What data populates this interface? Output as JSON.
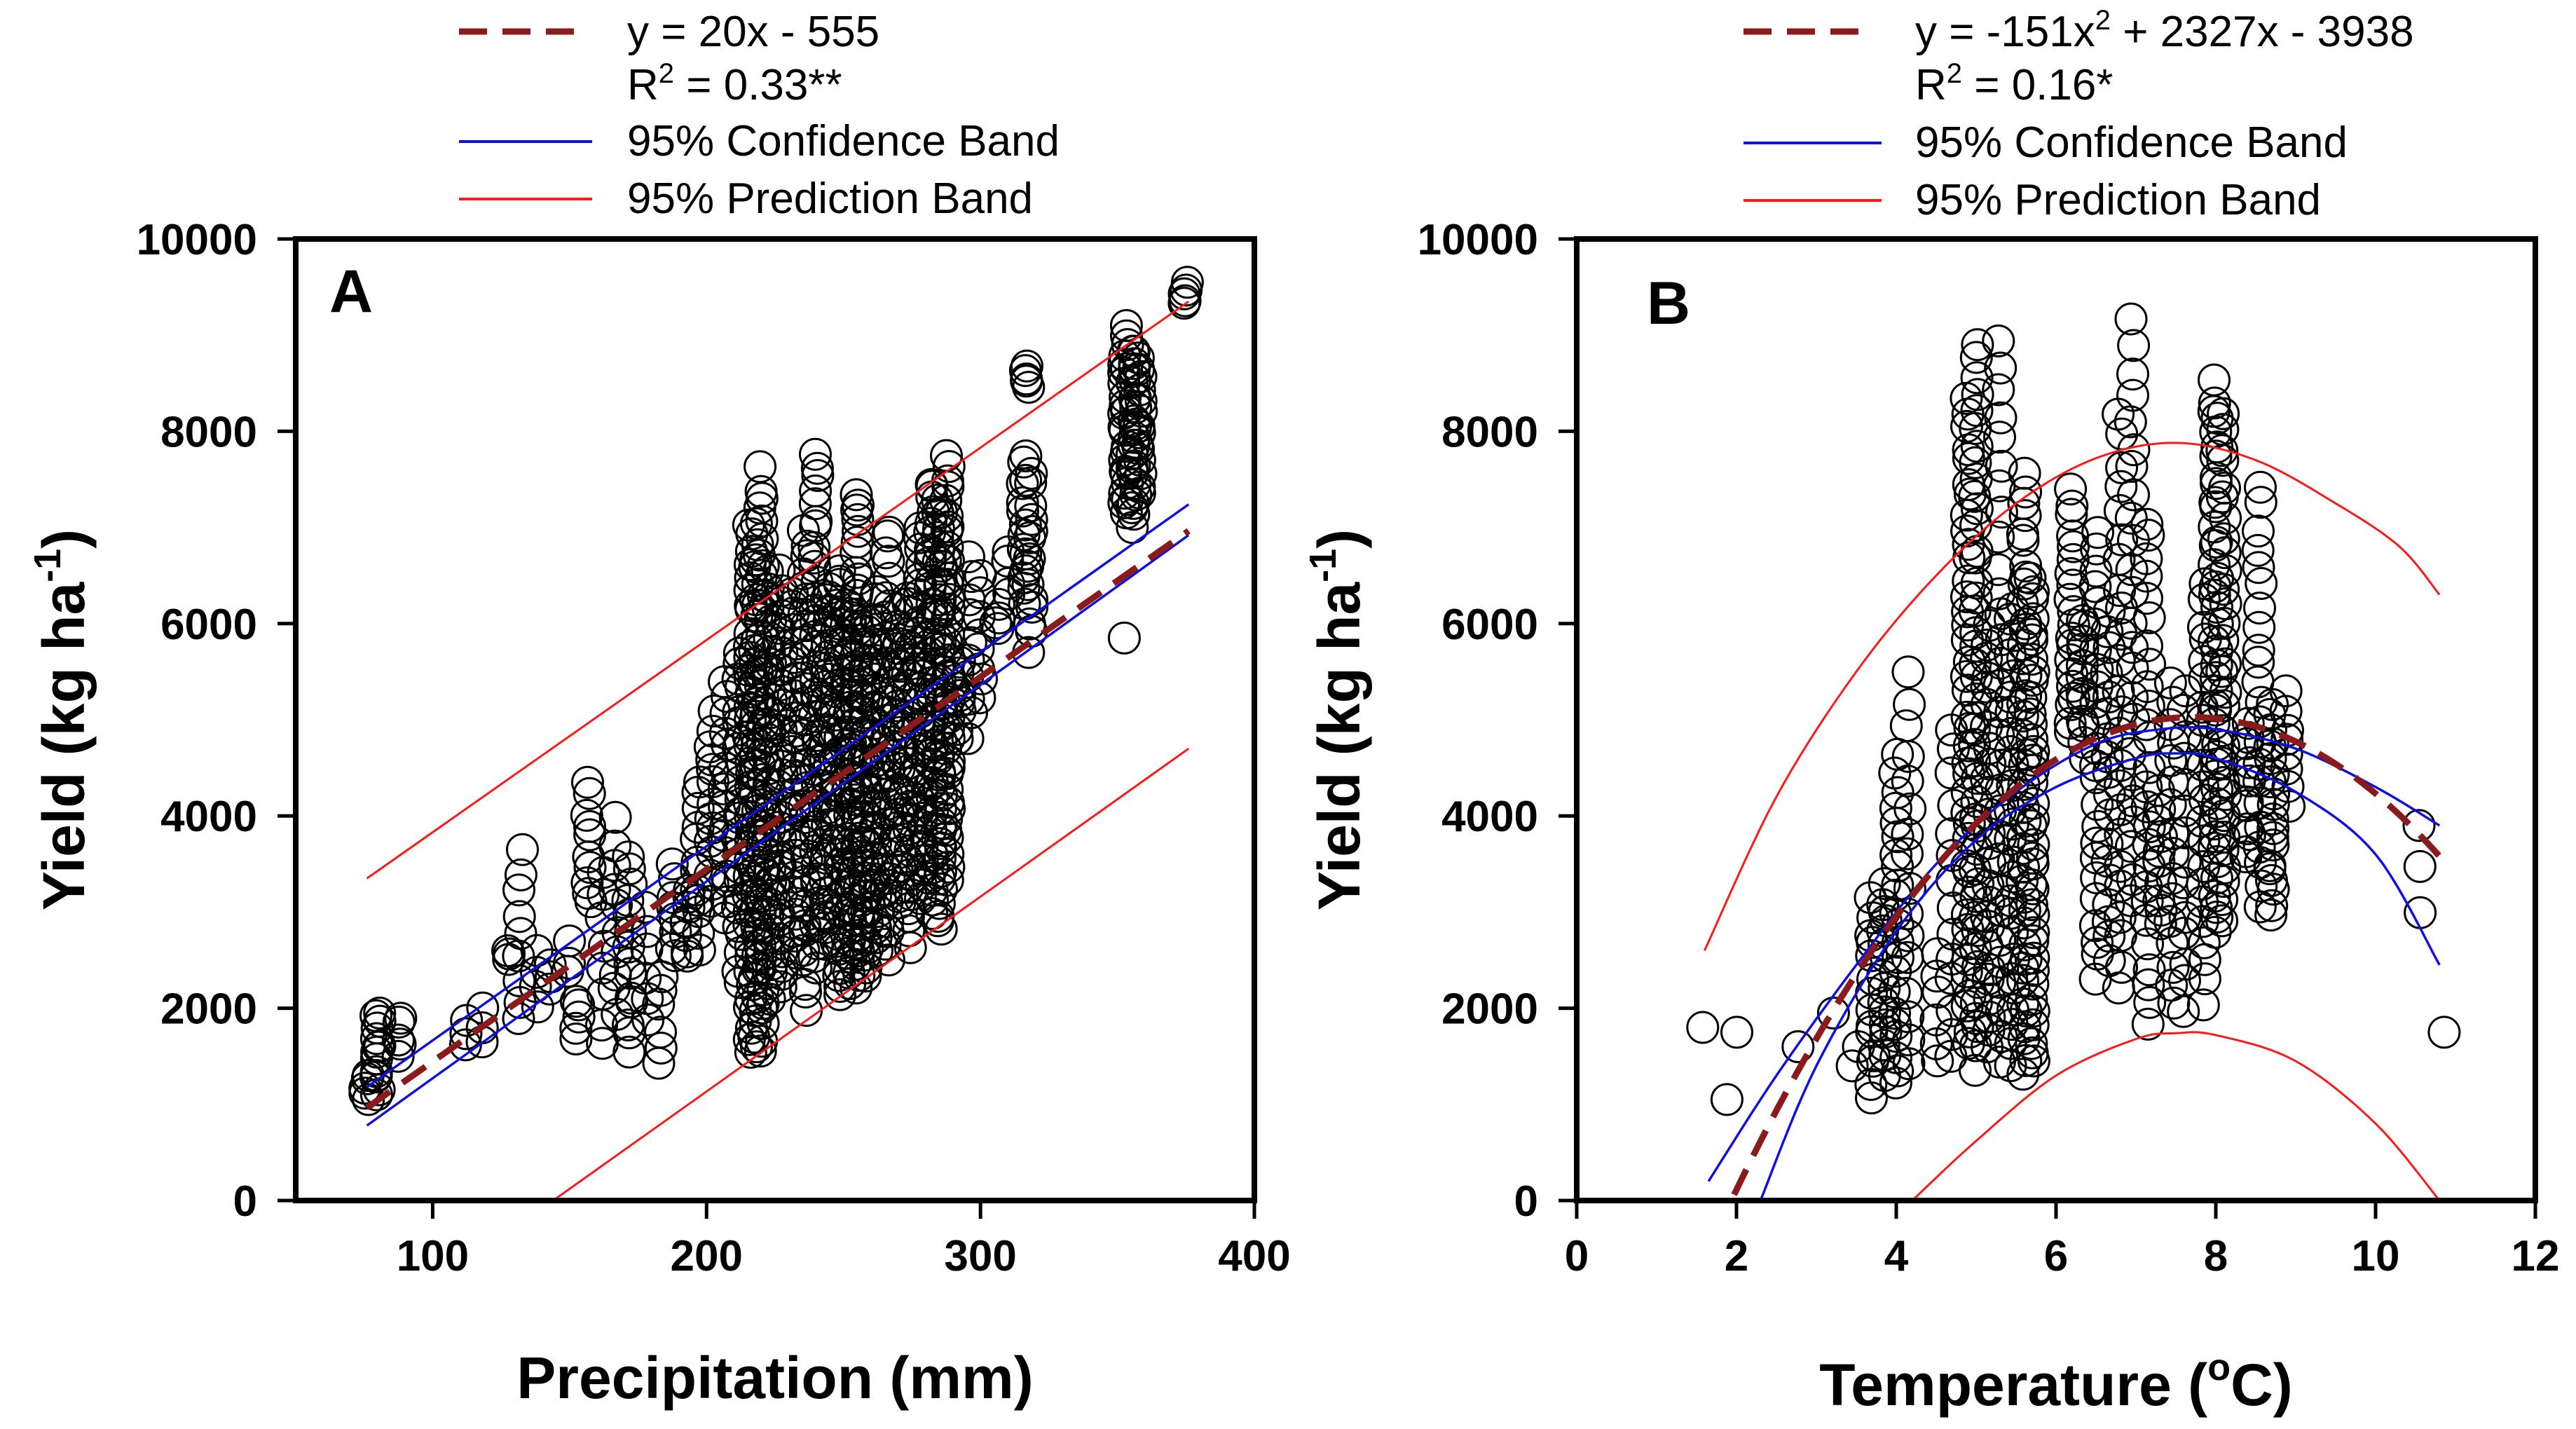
{
  "colors": {
    "fit": "#8b1a1a",
    "confidence": "#1010e0",
    "prediction": "#ff1a1a",
    "points": "#000000"
  },
  "chart_data": [
    {
      "type": "scatter",
      "panel_label": "A",
      "xlabel": "Precipitation (mm)",
      "ylabel_main": "Yield (kg ha",
      "ylabel_sup": "-1",
      "ylabel_close": ")",
      "xlim": [
        50,
        400
      ],
      "ylim": [
        0,
        10000
      ],
      "xticks": [
        100,
        200,
        300,
        400
      ],
      "yticks": [
        0,
        2000,
        4000,
        6000,
        8000,
        10000
      ],
      "legend": {
        "fit_line1": "y = 20x - 555",
        "fit_line2_prefix": "R",
        "fit_line2_sup": "2",
        "fit_line2_suffix": " = 0.33**",
        "confidence": "95% Confidence Band",
        "prediction": "95% Prediction Band"
      },
      "fit": {
        "model": "linear",
        "coefficients": [
          20,
          -555
        ],
        "x_range": [
          76,
          376
        ]
      },
      "confidence_band": {
        "lower": [
          [
            76,
            780
          ],
          [
            376,
            6920
          ]
        ],
        "upper": [
          [
            76,
            1180
          ],
          [
            376,
            7240
          ]
        ]
      },
      "prediction_band": {
        "lower": [
          [
            144,
            0
          ],
          [
            376,
            4700
          ]
        ],
        "upper": [
          [
            76,
            3350
          ],
          [
            376,
            9350
          ]
        ]
      },
      "clusters": [
        {
          "x": 76,
          "y_min": 1050,
          "y_max": 1300,
          "n": 5
        },
        {
          "x": 80,
          "y_min": 1100,
          "y_max": 1950,
          "n": 14
        },
        {
          "x": 88,
          "y_min": 1500,
          "y_max": 1900,
          "n": 5
        },
        {
          "x": 112,
          "y_min": 1600,
          "y_max": 1900,
          "n": 3
        },
        {
          "x": 118,
          "y_min": 1650,
          "y_max": 2050,
          "n": 3
        },
        {
          "x": 128,
          "y_min": 2450,
          "y_max": 2650,
          "n": 3
        },
        {
          "x": 132,
          "y_min": 1850,
          "y_max": 3650,
          "n": 9
        },
        {
          "x": 138,
          "y_min": 2000,
          "y_max": 2600,
          "n": 4
        },
        {
          "x": 143,
          "y_min": 2200,
          "y_max": 2500,
          "n": 3
        },
        {
          "x": 150,
          "y_min": 2350,
          "y_max": 2700,
          "n": 3
        },
        {
          "x": 153,
          "y_min": 1650,
          "y_max": 2100,
          "n": 5
        },
        {
          "x": 157,
          "y_min": 3050,
          "y_max": 4350,
          "n": 10
        },
        {
          "x": 162,
          "y_min": 1550,
          "y_max": 3450,
          "n": 8
        },
        {
          "x": 167,
          "y_min": 1900,
          "y_max": 4000,
          "n": 10
        },
        {
          "x": 172,
          "y_min": 1500,
          "y_max": 3600,
          "n": 14
        },
        {
          "x": 178,
          "y_min": 1850,
          "y_max": 3050,
          "n": 6
        },
        {
          "x": 183,
          "y_min": 1400,
          "y_max": 2400,
          "n": 6
        },
        {
          "x": 188,
          "y_min": 2500,
          "y_max": 3500,
          "n": 8
        },
        {
          "x": 193,
          "y_min": 2500,
          "y_max": 3300,
          "n": 8
        },
        {
          "x": 197,
          "y_min": 2600,
          "y_max": 4400,
          "n": 12
        },
        {
          "x": 202,
          "y_min": 3100,
          "y_max": 5100,
          "n": 14
        },
        {
          "x": 207,
          "y_min": 2900,
          "y_max": 5400,
          "n": 16
        },
        {
          "x": 212,
          "y_min": 2200,
          "y_max": 5800,
          "n": 24
        },
        {
          "x": 216,
          "y_min": 1450,
          "y_max": 7200,
          "n": 40
        },
        {
          "x": 218,
          "y_min": 1500,
          "y_max": 7100,
          "n": 40
        },
        {
          "x": 220,
          "y_min": 1400,
          "y_max": 7700,
          "n": 44
        },
        {
          "x": 223,
          "y_min": 2000,
          "y_max": 6600,
          "n": 36
        },
        {
          "x": 227,
          "y_min": 2100,
          "y_max": 6600,
          "n": 32
        },
        {
          "x": 232,
          "y_min": 2500,
          "y_max": 6400,
          "n": 30
        },
        {
          "x": 236,
          "y_min": 1900,
          "y_max": 7100,
          "n": 34
        },
        {
          "x": 240,
          "y_min": 2300,
          "y_max": 7900,
          "n": 40
        },
        {
          "x": 244,
          "y_min": 2600,
          "y_max": 6500,
          "n": 36
        },
        {
          "x": 248,
          "y_min": 2000,
          "y_max": 6700,
          "n": 38
        },
        {
          "x": 252,
          "y_min": 2200,
          "y_max": 6300,
          "n": 40
        },
        {
          "x": 255,
          "y_min": 2100,
          "y_max": 7500,
          "n": 46
        },
        {
          "x": 258,
          "y_min": 2300,
          "y_max": 6100,
          "n": 40
        },
        {
          "x": 262,
          "y_min": 2500,
          "y_max": 6400,
          "n": 34
        },
        {
          "x": 266,
          "y_min": 2400,
          "y_max": 7100,
          "n": 34
        },
        {
          "x": 270,
          "y_min": 3000,
          "y_max": 6200,
          "n": 30
        },
        {
          "x": 274,
          "y_min": 2600,
          "y_max": 6400,
          "n": 30
        },
        {
          "x": 278,
          "y_min": 3100,
          "y_max": 7100,
          "n": 32
        },
        {
          "x": 282,
          "y_min": 2900,
          "y_max": 7600,
          "n": 40
        },
        {
          "x": 285,
          "y_min": 2700,
          "y_max": 7400,
          "n": 44
        },
        {
          "x": 288,
          "y_min": 3300,
          "y_max": 7800,
          "n": 40
        },
        {
          "x": 292,
          "y_min": 4800,
          "y_max": 5600,
          "n": 8
        },
        {
          "x": 296,
          "y_min": 4800,
          "y_max": 6700,
          "n": 10
        },
        {
          "x": 300,
          "y_min": 5200,
          "y_max": 6500,
          "n": 8
        },
        {
          "x": 306,
          "y_min": 5900,
          "y_max": 6200,
          "n": 4
        },
        {
          "x": 310,
          "y_min": 6300,
          "y_max": 6800,
          "n": 4
        },
        {
          "x": 316,
          "y_min": 6200,
          "y_max": 7800,
          "n": 14
        },
        {
          "x": 318,
          "y_min": 5700,
          "y_max": 7600,
          "n": 14
        },
        {
          "x": 317,
          "y_min": 8400,
          "y_max": 8700,
          "n": 5
        },
        {
          "x": 352,
          "y_min": 5850,
          "y_max": 5850,
          "n": 1
        },
        {
          "x": 353,
          "y_min": 7100,
          "y_max": 9100,
          "n": 24
        },
        {
          "x": 356,
          "y_min": 7000,
          "y_max": 8900,
          "n": 24
        },
        {
          "x": 358,
          "y_min": 7300,
          "y_max": 8800,
          "n": 14
        },
        {
          "x": 375,
          "y_min": 9300,
          "y_max": 9550,
          "n": 5
        }
      ]
    },
    {
      "type": "scatter",
      "panel_label": "B",
      "xlabel_prefix": "Temperature (",
      "xlabel_sup": "o",
      "xlabel_suffix": "C)",
      "ylabel_main": "Yield (kg ha",
      "ylabel_sup": "-1",
      "ylabel_close": ")",
      "xlim": [
        0,
        12
      ],
      "ylim": [
        0,
        10000
      ],
      "xticks": [
        0,
        2,
        4,
        6,
        8,
        10,
        12
      ],
      "yticks": [
        0,
        2000,
        4000,
        6000,
        8000,
        10000
      ],
      "legend": {
        "fit_line1_prefix": "y = -151x",
        "fit_line1_sup": "2",
        "fit_line1_suffix": " + 2327x - 3938",
        "fit_line2_prefix": "R",
        "fit_line2_sup": "2",
        "fit_line2_suffix": " = 0.16*",
        "confidence": "95% Confidence Band",
        "prediction": "95% Prediction Band"
      },
      "fit": {
        "model": "quadratic",
        "coefficients": [
          -151,
          2327,
          -3938
        ],
        "x_range": [
          1.97,
          10.85
        ]
      },
      "confidence_band": {
        "lower": [
          [
            2.3,
            0
          ],
          [
            3.0,
            1400
          ],
          [
            4.0,
            2800
          ],
          [
            5.0,
            3750
          ],
          [
            6.0,
            4300
          ],
          [
            7.0,
            4600
          ],
          [
            7.5,
            4650
          ],
          [
            8.0,
            4600
          ],
          [
            9.0,
            4250
          ],
          [
            10.0,
            3600
          ],
          [
            10.8,
            2450
          ]
        ],
        "upper": [
          [
            1.65,
            200
          ],
          [
            2.5,
            1300
          ],
          [
            3.5,
            2450
          ],
          [
            4.5,
            3500
          ],
          [
            5.5,
            4250
          ],
          [
            6.5,
            4750
          ],
          [
            7.3,
            4900
          ],
          [
            8.0,
            4900
          ],
          [
            9.0,
            4700
          ],
          [
            10.0,
            4300
          ],
          [
            10.8,
            3900
          ]
        ]
      },
      "prediction_band": {
        "lower": [
          [
            4.2,
            0
          ],
          [
            5.0,
            620
          ],
          [
            6.0,
            1300
          ],
          [
            7.0,
            1680
          ],
          [
            7.5,
            1740
          ],
          [
            8.0,
            1720
          ],
          [
            9.0,
            1450
          ],
          [
            10.0,
            800
          ],
          [
            10.8,
            0
          ]
        ],
        "upper": [
          [
            1.6,
            2600
          ],
          [
            2.5,
            4200
          ],
          [
            3.5,
            5500
          ],
          [
            4.5,
            6500
          ],
          [
            5.5,
            7250
          ],
          [
            6.5,
            7720
          ],
          [
            7.5,
            7880
          ],
          [
            8.5,
            7700
          ],
          [
            9.5,
            7250
          ],
          [
            10.3,
            6800
          ],
          [
            10.8,
            6300
          ]
        ]
      },
      "clusters": [
        {
          "x": 1.6,
          "y_min": 1800,
          "y_max": 1800,
          "n": 1
        },
        {
          "x": 1.9,
          "y_min": 1050,
          "y_max": 1050,
          "n": 1
        },
        {
          "x": 2.0,
          "y_min": 1750,
          "y_max": 1750,
          "n": 1
        },
        {
          "x": 2.75,
          "y_min": 1600,
          "y_max": 1600,
          "n": 1
        },
        {
          "x": 3.2,
          "y_min": 1950,
          "y_max": 1950,
          "n": 1
        },
        {
          "x": 3.45,
          "y_min": 1400,
          "y_max": 1400,
          "n": 1
        },
        {
          "x": 3.55,
          "y_min": 1600,
          "y_max": 1600,
          "n": 1
        },
        {
          "x": 3.7,
          "y_min": 1050,
          "y_max": 3150,
          "n": 14
        },
        {
          "x": 3.85,
          "y_min": 1300,
          "y_max": 3300,
          "n": 16
        },
        {
          "x": 4.0,
          "y_min": 1100,
          "y_max": 4700,
          "n": 22
        },
        {
          "x": 4.15,
          "y_min": 1300,
          "y_max": 5550,
          "n": 16
        },
        {
          "x": 4.5,
          "y_min": 1400,
          "y_max": 2600,
          "n": 6
        },
        {
          "x": 4.7,
          "y_min": 1400,
          "y_max": 5000,
          "n": 14
        },
        {
          "x": 4.9,
          "y_min": 1500,
          "y_max": 8500,
          "n": 40
        },
        {
          "x": 5.0,
          "y_min": 1250,
          "y_max": 9050,
          "n": 44
        },
        {
          "x": 5.15,
          "y_min": 1450,
          "y_max": 6100,
          "n": 26
        },
        {
          "x": 5.3,
          "y_min": 1300,
          "y_max": 9100,
          "n": 30
        },
        {
          "x": 5.45,
          "y_min": 1300,
          "y_max": 6300,
          "n": 26
        },
        {
          "x": 5.6,
          "y_min": 1200,
          "y_max": 7700,
          "n": 42
        },
        {
          "x": 5.7,
          "y_min": 1300,
          "y_max": 6600,
          "n": 38
        },
        {
          "x": 6.2,
          "y_min": 4800,
          "y_max": 7400,
          "n": 20
        },
        {
          "x": 6.35,
          "y_min": 4600,
          "y_max": 6100,
          "n": 12
        },
        {
          "x": 6.5,
          "y_min": 2200,
          "y_max": 7100,
          "n": 24
        },
        {
          "x": 6.65,
          "y_min": 2400,
          "y_max": 6200,
          "n": 18
        },
        {
          "x": 6.8,
          "y_min": 2100,
          "y_max": 8300,
          "n": 24
        },
        {
          "x": 6.95,
          "y_min": 3000,
          "y_max": 9300,
          "n": 24
        },
        {
          "x": 7.15,
          "y_min": 1700,
          "y_max": 7200,
          "n": 26
        },
        {
          "x": 7.3,
          "y_min": 2800,
          "y_max": 4300,
          "n": 10
        },
        {
          "x": 7.45,
          "y_min": 1950,
          "y_max": 5500,
          "n": 16
        },
        {
          "x": 7.6,
          "y_min": 1900,
          "y_max": 5400,
          "n": 14
        },
        {
          "x": 7.85,
          "y_min": 2000,
          "y_max": 6500,
          "n": 22
        },
        {
          "x": 8.0,
          "y_min": 2700,
          "y_max": 8600,
          "n": 44
        },
        {
          "x": 8.1,
          "y_min": 2800,
          "y_max": 8300,
          "n": 30
        },
        {
          "x": 8.4,
          "y_min": 3500,
          "y_max": 5000,
          "n": 12
        },
        {
          "x": 8.55,
          "y_min": 3000,
          "y_max": 7500,
          "n": 22
        },
        {
          "x": 8.7,
          "y_min": 2900,
          "y_max": 5200,
          "n": 20
        },
        {
          "x": 8.9,
          "y_min": 4100,
          "y_max": 5300,
          "n": 8
        },
        {
          "x": 10.55,
          "y_min": 2950,
          "y_max": 3900,
          "n": 3
        },
        {
          "x": 10.85,
          "y_min": 1750,
          "y_max": 1750,
          "n": 1
        }
      ]
    }
  ]
}
